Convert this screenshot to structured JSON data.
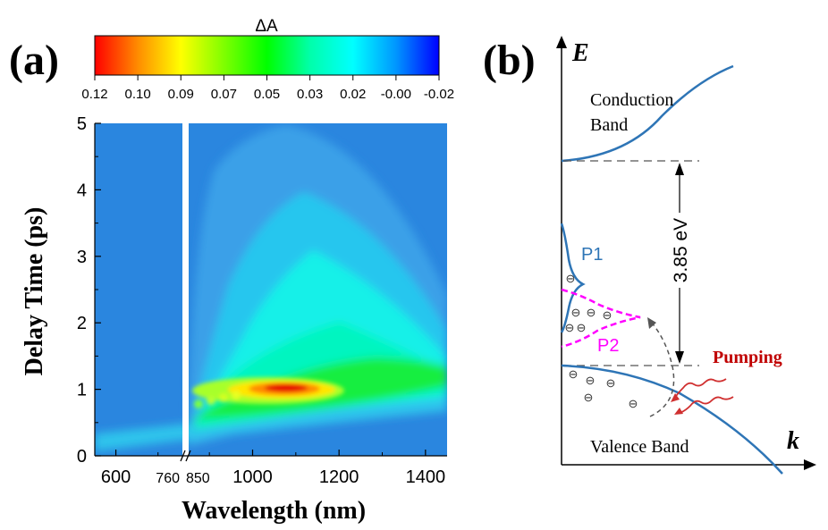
{
  "chart_data": [
    {
      "type": "heatmap",
      "panel_label": "(a)",
      "colorbar": {
        "title": "ΔA",
        "tick_labels": [
          "0.12",
          "0.10",
          "0.09",
          "0.07",
          "0.05",
          "0.03",
          "0.02",
          "-0.00",
          "-0.02"
        ],
        "range": [
          0.12,
          -0.02
        ],
        "colors": [
          "#ff0000",
          "#ff8c00",
          "#ffff00",
          "#7fff00",
          "#00ff00",
          "#00ffaa",
          "#00ffff",
          "#0096ff",
          "#0000ff"
        ]
      },
      "xlabel": "Wavelength (nm)",
      "ylabel": "Delay Time (ps)",
      "x_break": {
        "from": 760,
        "to": 850
      },
      "x_ranges": [
        [
          550,
          760
        ],
        [
          850,
          1450
        ]
      ],
      "x_tick_labels": [
        {
          "value": 600,
          "label": "600"
        },
        {
          "value": 760,
          "label": "760"
        },
        {
          "value": 850,
          "label": "850"
        },
        {
          "value": 1000,
          "label": "1000"
        },
        {
          "value": 1200,
          "label": "1200"
        },
        {
          "value": 1400,
          "label": "1400"
        }
      ],
      "ylim": [
        0,
        5
      ],
      "y_ticks": [
        0,
        1,
        2,
        3,
        4,
        5
      ],
      "y_tick_labels": [
        "0",
        "1",
        "2",
        "3",
        "4",
        "5"
      ],
      "features": {
        "peak_wavelength_nm": 1070,
        "peak_delay_ps": 1.0,
        "peak_value": 0.12,
        "background_value": 0.005
      }
    },
    {
      "type": "diagram",
      "panel_label": "(b)",
      "y_axis_label": "E",
      "x_axis_label": "k",
      "conduction_band_label": "Conduction Band",
      "valence_band_label": "Valence Band",
      "gap_label": "3.85 eV",
      "pumping_label": "Pumping",
      "p1_label": "P1",
      "p2_label": "P2",
      "electron_symbol": "⊖",
      "colors": {
        "band": "#2e75b6",
        "p2": "#ff00ff",
        "pumping": "#c00000",
        "axis": "#000000"
      }
    }
  ]
}
